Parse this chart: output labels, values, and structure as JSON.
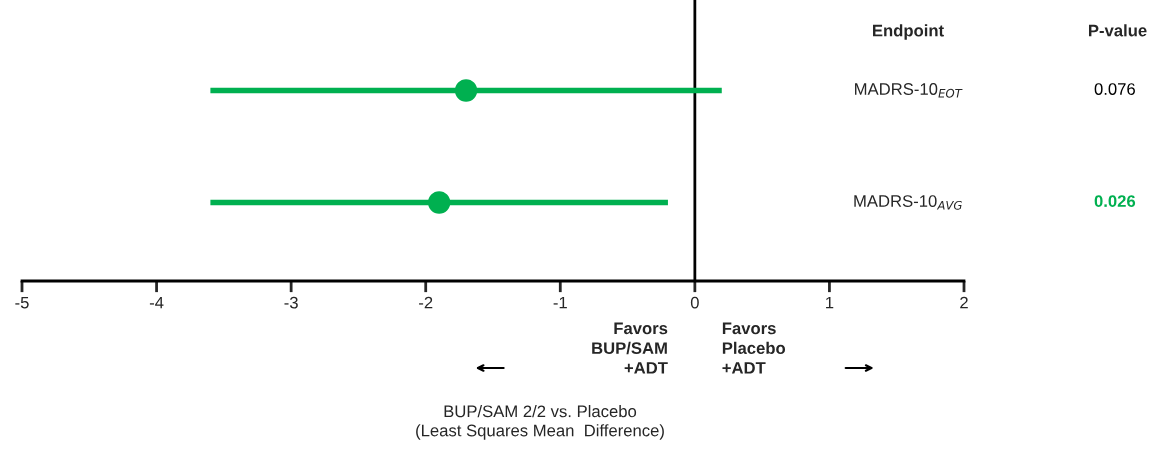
{
  "chart_data": {
    "type": "scatter",
    "orientation": "horizontal",
    "categories": [
      "MADRS-10$_{EOT}$",
      "MADRS-10$_{AVG}$"
    ],
    "series": [
      {
        "color": "#00b050",
        "values": [
          -1.7,
          -1.9
        ],
        "errors": [
          [
            -3.6,
            0.2
          ],
          [
            -3.6,
            -0.2
          ]
        ]
      }
    ],
    "marker": "circle",
    "xlim": [
      -5,
      2
    ],
    "xticks": [
      -5,
      -4,
      -3,
      -2,
      -1,
      0,
      1,
      2
    ],
    "ref_lines": [
      {
        "axis": "x",
        "value": 0,
        "color": "#000000"
      }
    ],
    "annotations": [
      "Endpoint",
      "P-value",
      "0.076",
      "0.026",
      "Favors\nBUP/SAM\n+ADT",
      "Favors\nPlacebo\n+ADT",
      "BUP/SAM 2/2 vs. Placebo\n(Least Squares Mean  Difference)"
    ],
    "grid": false,
    "legend": false
  }
}
